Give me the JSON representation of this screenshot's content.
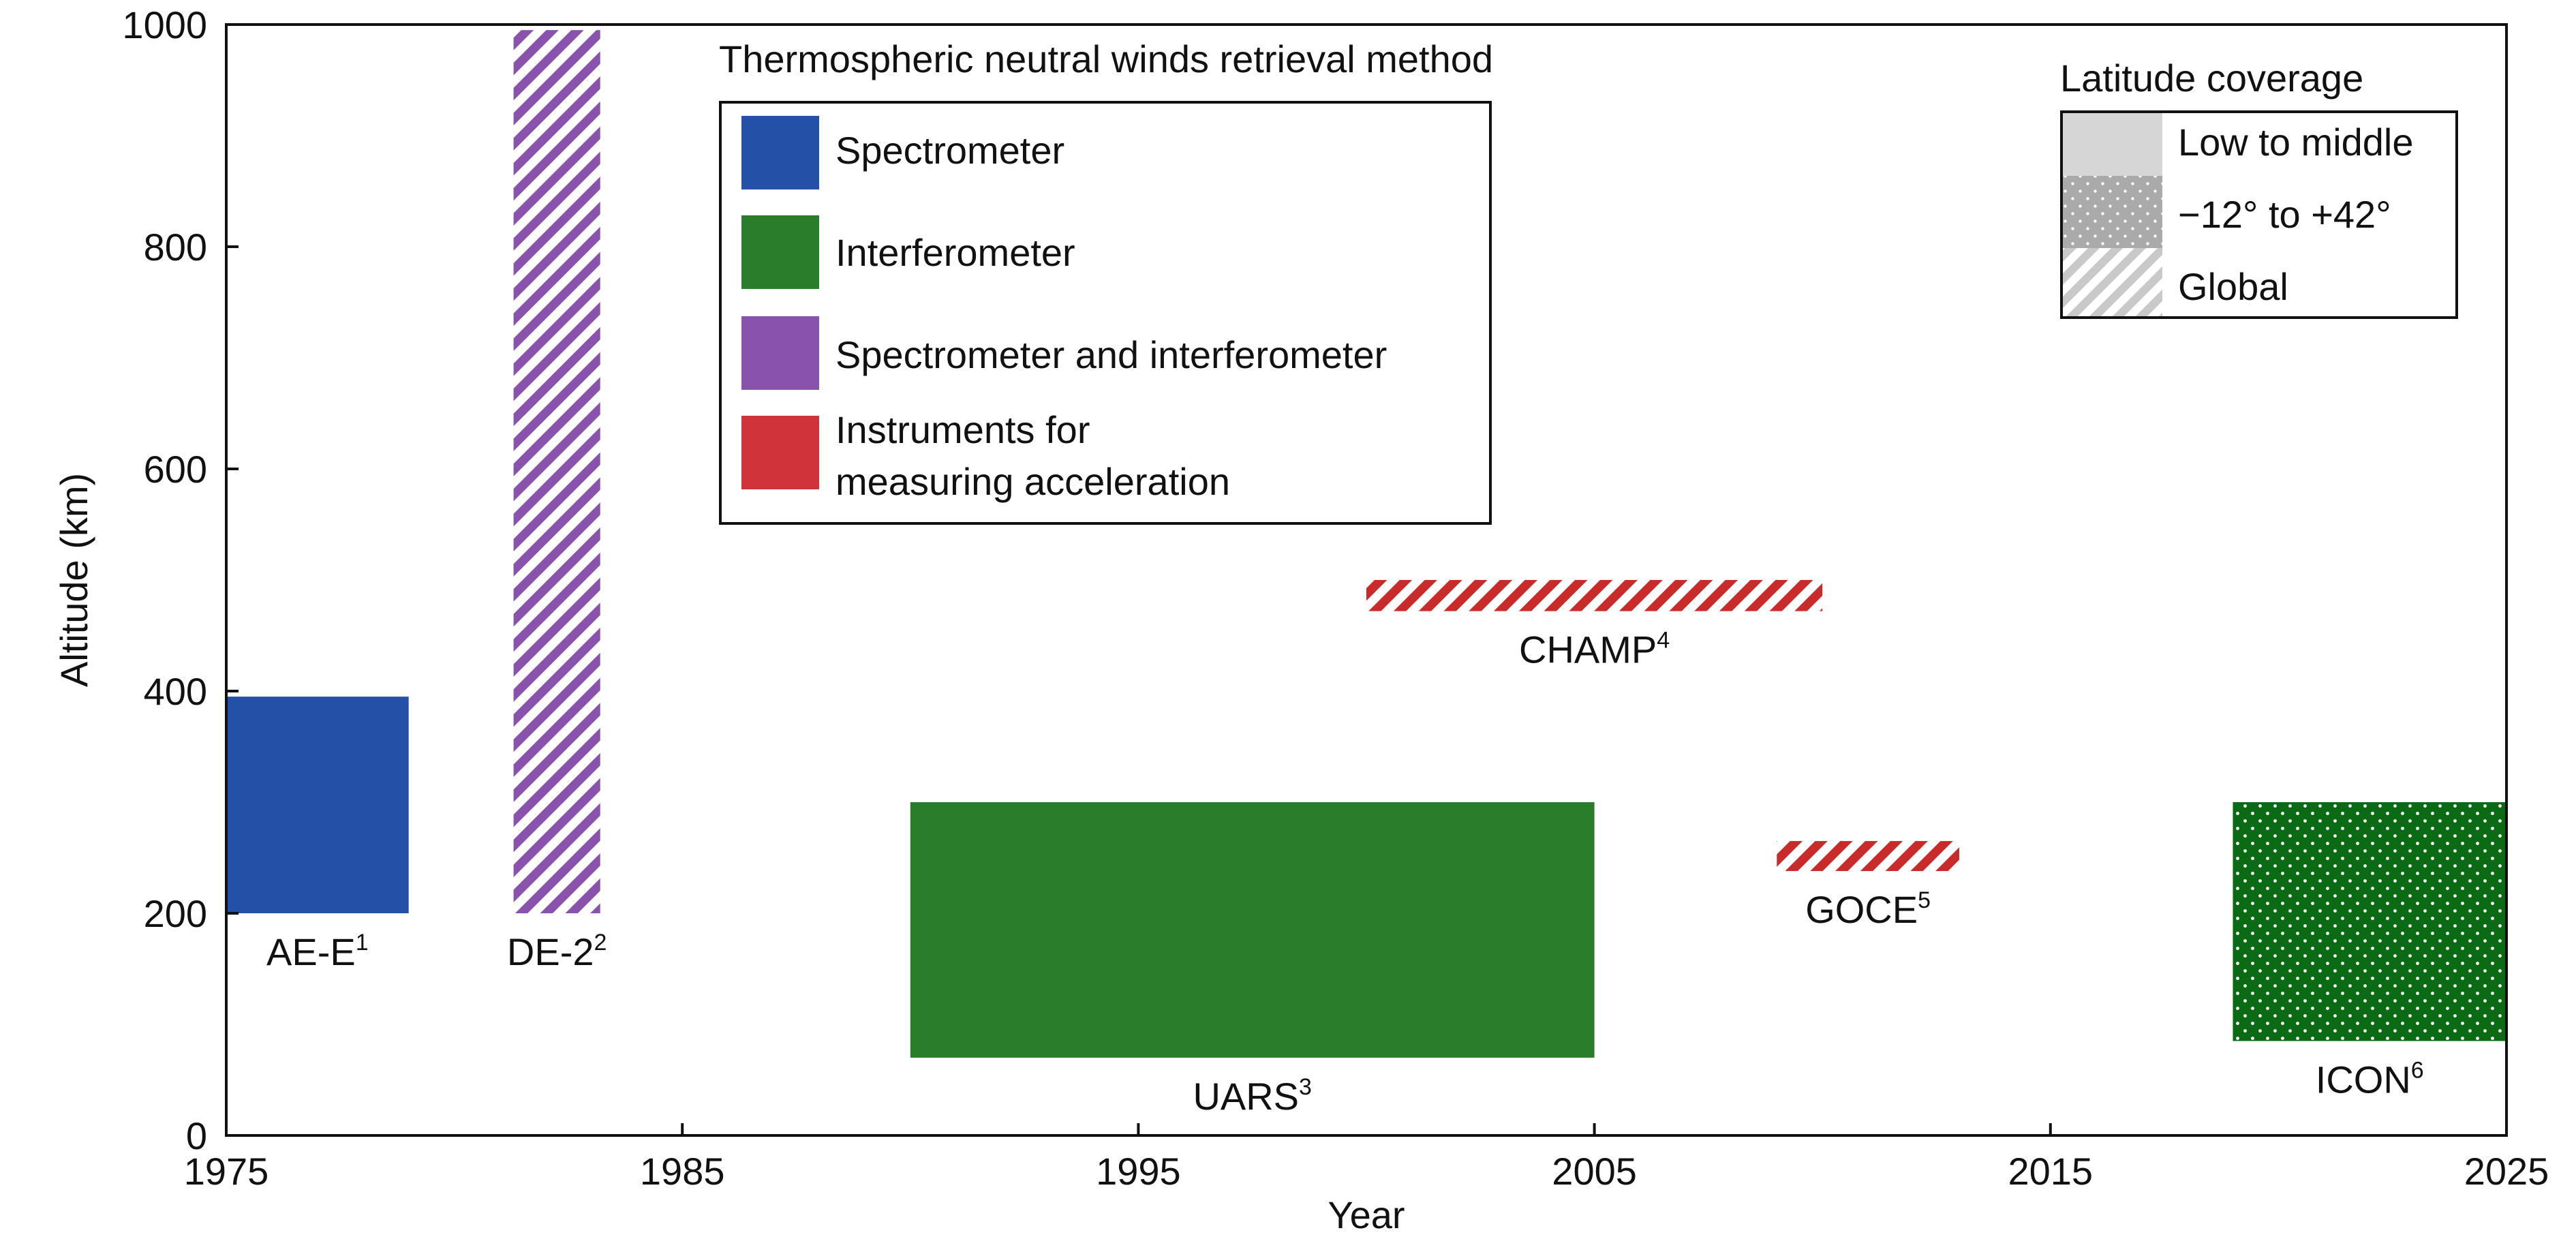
{
  "chart_data": {
    "type": "bar",
    "xlabel": "Year",
    "ylabel": "Altitude (km)",
    "xlim": [
      1975,
      2025
    ],
    "ylim": [
      0,
      1000
    ],
    "xticks": [
      "1975",
      "1985",
      "1995",
      "2005",
      "2015",
      "2025"
    ],
    "yticks": [
      "0",
      "200",
      "400",
      "600",
      "800",
      "1000"
    ],
    "legend_method": {
      "title": "Thermospheric neutral winds retrieval method",
      "placement": "top-center",
      "items": [
        {
          "label": "Spectrometer",
          "color": "#2550a8"
        },
        {
          "label": "Interferometer",
          "color": "#2a7d2a"
        },
        {
          "label": "Spectrometer and interferometer",
          "color": "#8953ad"
        },
        {
          "label": "Instruments for",
          "label2": "measuring acceleration",
          "color": "#d0343a"
        }
      ]
    },
    "legend_coverage": {
      "title": "Latitude coverage",
      "placement": "top-right",
      "items": [
        {
          "label": "Low to middle",
          "pattern": "solid"
        },
        {
          "label": "−12° to +42°",
          "pattern": "dots"
        },
        {
          "label": "Global",
          "pattern": "hatch"
        }
      ]
    },
    "missions": [
      {
        "name": "AE-E",
        "sup": "1",
        "x_start": 1975,
        "x_end": 1979,
        "y_min": 200,
        "y_max": 395,
        "method_color": "#2550a8",
        "coverage": "solid"
      },
      {
        "name": "DE-2",
        "sup": "2",
        "x_start": 1981.3,
        "x_end": 1983.2,
        "y_min": 200,
        "y_max": 995,
        "method_color": "#8953ad",
        "coverage": "hatch"
      },
      {
        "name": "UARS",
        "sup": "3",
        "x_start": 1990,
        "x_end": 2005,
        "y_min": 70,
        "y_max": 300,
        "method_color": "#2a7d2a",
        "coverage": "solid"
      },
      {
        "name": "CHAMP",
        "sup": "4",
        "x_start": 2000,
        "x_end": 2010,
        "y_min": 472,
        "y_max": 500,
        "method_color": "#c92a2a",
        "coverage": "hatch"
      },
      {
        "name": "GOCE",
        "sup": "5",
        "x_start": 2009,
        "x_end": 2013,
        "y_min": 238,
        "y_max": 265,
        "method_color": "#c92a2a",
        "coverage": "hatch"
      },
      {
        "name": "ICON",
        "sup": "6",
        "x_start": 2019,
        "x_end": 2025,
        "y_min": 85,
        "y_max": 300,
        "method_color": "#0b6a14",
        "coverage": "dots"
      }
    ]
  }
}
